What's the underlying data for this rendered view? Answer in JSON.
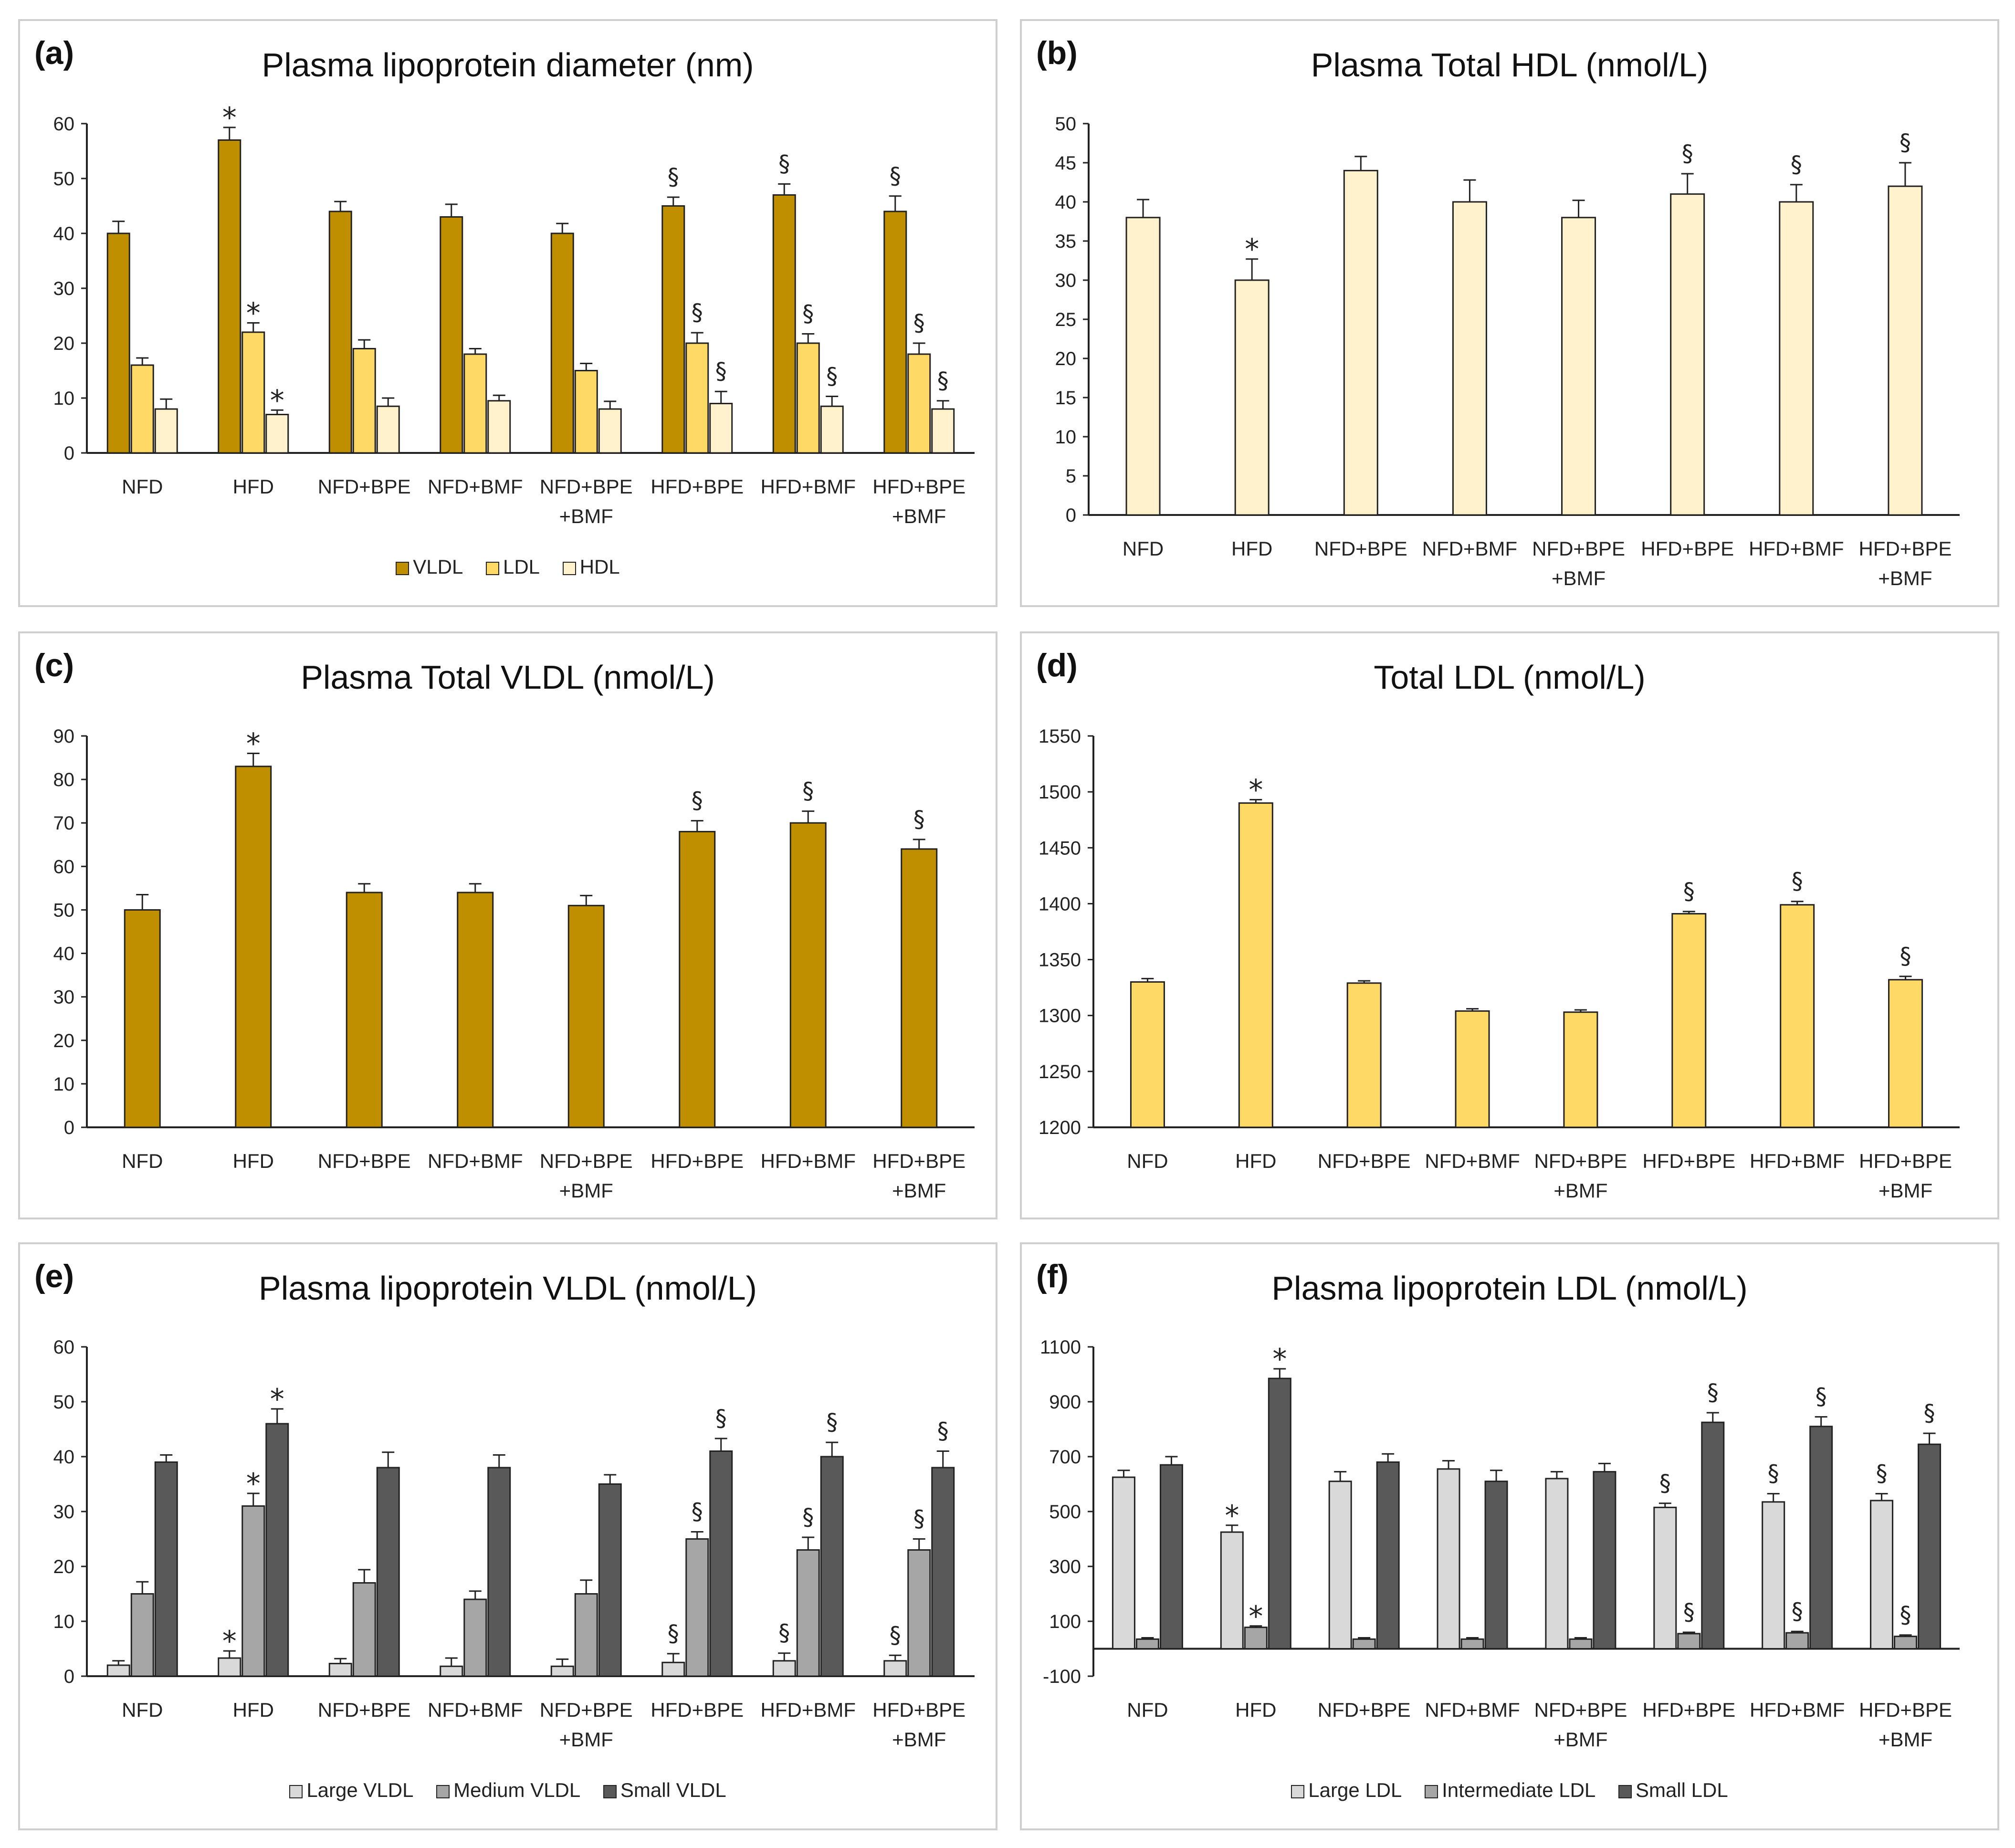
{
  "chart_data": [
    {
      "id": "a",
      "panel_label": "(a)",
      "type": "bar",
      "title": "Plasma lipoprotein diameter (nm)",
      "categories": [
        "NFD",
        "HFD",
        "NFD+BPE",
        "NFD+BMF",
        "NFD+BPE\n+BMF",
        "HFD+BPE",
        "HFD+BMF",
        "HFD+BPE\n+BMF"
      ],
      "ylim": [
        0,
        60
      ],
      "yticks": [
        0,
        10,
        20,
        30,
        40,
        50,
        60
      ],
      "legend": "bottom",
      "series": [
        {
          "name": "VLDL",
          "color": "#BF8F00",
          "values": [
            40,
            57,
            44,
            43,
            40,
            45,
            47,
            44
          ],
          "errors": [
            2.2,
            2.3,
            1.8,
            2.3,
            1.8,
            1.6,
            2.0,
            2.8
          ],
          "marks": [
            "",
            "*",
            "",
            "",
            "",
            "§",
            "§",
            "§"
          ]
        },
        {
          "name": "LDL",
          "color": "#FFD966",
          "values": [
            16,
            22,
            19,
            18,
            15,
            20,
            20,
            18
          ],
          "errors": [
            1.3,
            1.7,
            1.6,
            1.0,
            1.3,
            1.9,
            1.7,
            2.0
          ],
          "marks": [
            "",
            "*",
            "",
            "",
            "",
            "§",
            "§",
            "§"
          ]
        },
        {
          "name": "HDL",
          "color": "#FFF2CC",
          "values": [
            8,
            7,
            8.5,
            9.5,
            8,
            9,
            8.5,
            8
          ],
          "errors": [
            1.8,
            0.8,
            1.5,
            1.0,
            1.4,
            2.2,
            1.8,
            1.5
          ],
          "marks": [
            "",
            "*",
            "",
            "",
            "",
            "§",
            "§",
            "§"
          ]
        }
      ]
    },
    {
      "id": "b",
      "panel_label": "(b)",
      "type": "bar",
      "title": "Plasma Total HDL (nmol/L)",
      "categories": [
        "NFD",
        "HFD",
        "NFD+BPE",
        "NFD+BMF",
        "NFD+BPE\n+BMF",
        "HFD+BPE",
        "HFD+BMF",
        "HFD+BPE\n+BMF"
      ],
      "ylim": [
        0,
        50
      ],
      "yticks": [
        0,
        5,
        10,
        15,
        20,
        25,
        30,
        35,
        40,
        45,
        50
      ],
      "series": [
        {
          "name": "Total HDL",
          "color": "#FFF2CC",
          "values": [
            38,
            30,
            44,
            40,
            38,
            41,
            40,
            42
          ],
          "errors": [
            2.3,
            2.7,
            1.8,
            2.8,
            2.2,
            2.6,
            2.2,
            3.0
          ],
          "marks": [
            "",
            "*",
            "",
            "",
            "",
            "§",
            "§",
            "§"
          ]
        }
      ]
    },
    {
      "id": "c",
      "panel_label": "(c)",
      "type": "bar",
      "title": "Plasma Total VLDL (nmol/L)",
      "categories": [
        "NFD",
        "HFD",
        "NFD+BPE",
        "NFD+BMF",
        "NFD+BPE\n+BMF",
        "HFD+BPE",
        "HFD+BMF",
        "HFD+BPE\n+BMF"
      ],
      "ylim": [
        0,
        90
      ],
      "yticks": [
        0,
        10,
        20,
        30,
        40,
        50,
        60,
        70,
        80,
        90
      ],
      "series": [
        {
          "name": "Total VLDL",
          "color": "#BF8F00",
          "values": [
            50,
            83,
            54,
            54,
            51,
            68,
            70,
            64
          ],
          "errors": [
            3.5,
            3.0,
            2.0,
            2.0,
            2.3,
            2.5,
            2.7,
            2.2
          ],
          "marks": [
            "",
            "*",
            "",
            "",
            "",
            "§",
            "§",
            "§"
          ]
        }
      ]
    },
    {
      "id": "d",
      "panel_label": "(d)",
      "type": "bar",
      "title": "Total LDL (nmol/L)",
      "categories": [
        "NFD",
        "HFD",
        "NFD+BPE",
        "NFD+BMF",
        "NFD+BPE\n+BMF",
        "HFD+BPE",
        "HFD+BMF",
        "HFD+BPE\n+BMF"
      ],
      "ylim": [
        1200,
        1550
      ],
      "yticks": [
        1200,
        1250,
        1300,
        1350,
        1400,
        1450,
        1500,
        1550
      ],
      "series": [
        {
          "name": "Total LDL",
          "color": "#FFD966",
          "values": [
            1330,
            1490,
            1329,
            1304,
            1303,
            1391,
            1399,
            1332
          ],
          "errors": [
            3,
            3,
            2,
            2,
            2,
            2,
            3,
            3
          ],
          "marks": [
            "",
            "*",
            "",
            "",
            "",
            "§",
            "§",
            "§"
          ]
        }
      ]
    },
    {
      "id": "e",
      "panel_label": "(e)",
      "type": "bar",
      "title": "Plasma lipoprotein VLDL (nmol/L)",
      "categories": [
        "NFD",
        "HFD",
        "NFD+BPE",
        "NFD+BMF",
        "NFD+BPE\n+BMF",
        "HFD+BPE",
        "HFD+BMF",
        "HFD+BPE\n+BMF"
      ],
      "ylim": [
        0,
        60
      ],
      "yticks": [
        0,
        10,
        20,
        30,
        40,
        50,
        60
      ],
      "legend": "bottom",
      "series": [
        {
          "name": "Large VLDL",
          "color": "#D9D9D9",
          "values": [
            2,
            3.3,
            2.3,
            1.8,
            1.8,
            2.5,
            2.8,
            2.8
          ],
          "errors": [
            0.8,
            1.3,
            0.9,
            1.5,
            1.3,
            1.6,
            1.4,
            1.0
          ],
          "marks": [
            "",
            "*",
            "",
            "",
            "",
            "§",
            "§",
            "§"
          ]
        },
        {
          "name": "Medium VLDL",
          "color": "#A6A6A6",
          "values": [
            15,
            31,
            17,
            14,
            15,
            25,
            23,
            23
          ],
          "errors": [
            2.2,
            2.3,
            2.4,
            1.5,
            2.5,
            1.3,
            2.3,
            2.0
          ],
          "marks": [
            "",
            "*",
            "",
            "",
            "",
            "§",
            "§",
            "§"
          ]
        },
        {
          "name": "Small VLDL",
          "color": "#595959",
          "values": [
            39,
            46,
            38,
            38,
            35,
            41,
            40,
            38
          ],
          "errors": [
            1.3,
            2.7,
            2.8,
            2.3,
            1.7,
            2.3,
            2.6,
            3.0
          ],
          "marks": [
            "",
            "*",
            "",
            "",
            "",
            "§",
            "§",
            "§"
          ]
        }
      ]
    },
    {
      "id": "f",
      "panel_label": "(f)",
      "type": "bar",
      "title": "Plasma lipoprotein LDL (nmol/L)",
      "categories": [
        "NFD",
        "HFD",
        "NFD+BPE",
        "NFD+BMF",
        "NFD+BPE\n+BMF",
        "HFD+BPE",
        "HFD+BMF",
        "HFD+BPE\n+BMF"
      ],
      "ylim": [
        -100,
        1100
      ],
      "yticks": [
        -100,
        100,
        300,
        500,
        700,
        900,
        1100
      ],
      "legend": "bottom",
      "series": [
        {
          "name": "Large LDL",
          "color": "#D9D9D9",
          "values": [
            625,
            425,
            610,
            655,
            620,
            515,
            535,
            540
          ],
          "errors": [
            25,
            25,
            35,
            30,
            25,
            15,
            30,
            25
          ],
          "marks": [
            "",
            "*",
            "",
            "",
            "",
            "§",
            "§",
            "§"
          ]
        },
        {
          "name": "Intermediate LDL",
          "color": "#A6A6A6",
          "values": [
            35,
            78,
            35,
            35,
            35,
            55,
            58,
            45
          ],
          "errors": [
            5,
            5,
            5,
            5,
            5,
            5,
            5,
            5
          ],
          "marks": [
            "",
            "*",
            "",
            "",
            "",
            "§",
            "§",
            "§"
          ]
        },
        {
          "name": "Small LDL",
          "color": "#595959",
          "values": [
            670,
            985,
            680,
            610,
            645,
            825,
            810,
            745
          ],
          "errors": [
            30,
            35,
            30,
            40,
            30,
            35,
            35,
            40
          ],
          "marks": [
            "",
            "*",
            "",
            "",
            "",
            "§",
            "§",
            "§"
          ]
        }
      ]
    }
  ]
}
